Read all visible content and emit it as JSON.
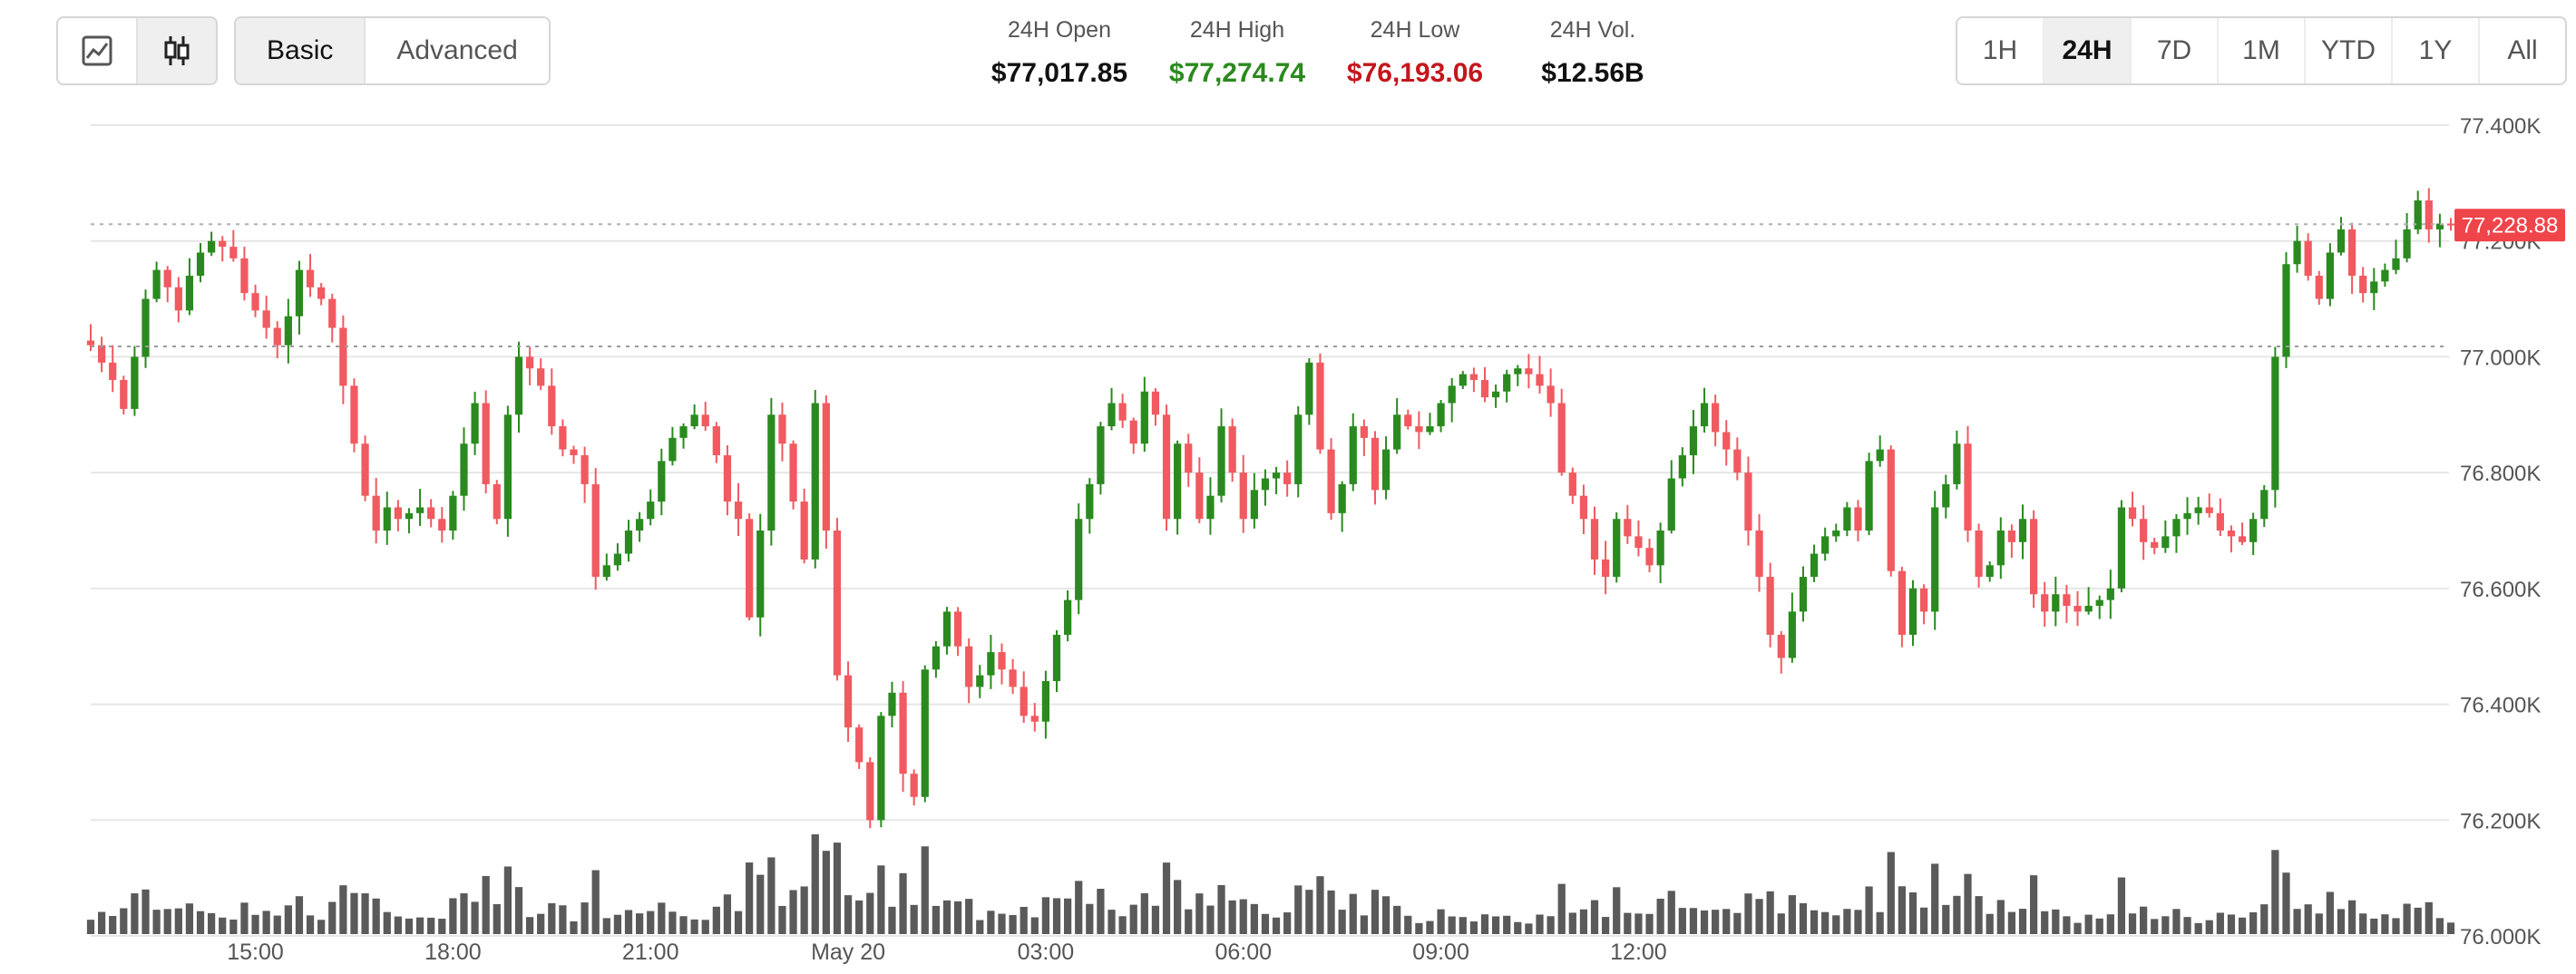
{
  "toolbar": {
    "chart_types": [
      {
        "icon": "line-chart-icon",
        "active": false
      },
      {
        "icon": "candlestick-icon",
        "active": true
      }
    ],
    "modes": [
      {
        "label": "Basic",
        "active": true
      },
      {
        "label": "Advanced",
        "active": false
      }
    ]
  },
  "stats": {
    "open": {
      "label": "24H Open",
      "value": "$77,017.85"
    },
    "high": {
      "label": "24H High",
      "value": "$77,274.74"
    },
    "low": {
      "label": "24H Low",
      "value": "$76,193.06"
    },
    "vol": {
      "label": "24H Vol.",
      "value": "$12.56B"
    }
  },
  "ranges": [
    {
      "label": "1H",
      "active": false
    },
    {
      "label": "24H",
      "active": true
    },
    {
      "label": "7D",
      "active": false
    },
    {
      "label": "1M",
      "active": false
    },
    {
      "label": "YTD",
      "active": false
    },
    {
      "label": "1Y",
      "active": false
    },
    {
      "label": "All",
      "active": false
    }
  ],
  "colors": {
    "up": "#2a8a1f",
    "down": "#f05a60",
    "volume": "#5a5a5a",
    "grid": "#e6e6e6",
    "price_tag": "#f0444b"
  },
  "chart_data": {
    "type": "candlestick",
    "interval_minutes": 10,
    "start_time": "12:30",
    "x_tick_labels": [
      {
        "label": "15:00",
        "time": "15:00"
      },
      {
        "label": "18:00",
        "time": "18:00"
      },
      {
        "label": "21:00",
        "time": "21:00"
      },
      {
        "label": "May 20",
        "time": "May 20 00:00"
      },
      {
        "label": "03:00",
        "time": "May 20 03:00"
      },
      {
        "label": "06:00",
        "time": "May 20 06:00"
      },
      {
        "label": "09:00",
        "time": "May 20 09:00"
      },
      {
        "label": "12:00",
        "time": "May 20 12:00"
      }
    ],
    "y_tick_labels": [
      "76.000K",
      "76.200K",
      "76.400K",
      "76.600K",
      "76.800K",
      "77.000K",
      "77.200K",
      "77.400K"
    ],
    "ylim": [
      76000,
      77400
    ],
    "reference_lines": {
      "open": 77017.85,
      "last": 77228.88
    },
    "last_price_label": "77,228.88",
    "closes": [
      77020,
      76990,
      76960,
      76910,
      77000,
      77100,
      77150,
      77120,
      77080,
      77140,
      77180,
      77200,
      77190,
      77170,
      77110,
      77080,
      77050,
      77020,
      77070,
      77150,
      77120,
      77100,
      77050,
      76950,
      76850,
      76760,
      76700,
      76740,
      76720,
      76730,
      76740,
      76720,
      76700,
      76760,
      76850,
      76920,
      76780,
      76720,
      76900,
      77000,
      76980,
      76950,
      76880,
      76840,
      76830,
      76780,
      76620,
      76640,
      76660,
      76700,
      76720,
      76750,
      76820,
      76860,
      76880,
      76900,
      76880,
      76830,
      76750,
      76720,
      76550,
      76700,
      76900,
      76850,
      76750,
      76650,
      76920,
      76700,
      76450,
      76360,
      76300,
      76200,
      76380,
      76420,
      76280,
      76240,
      76460,
      76500,
      76560,
      76500,
      76430,
      76450,
      76490,
      76460,
      76430,
      76380,
      76370,
      76440,
      76520,
      76580,
      76720,
      76780,
      76880,
      76920,
      76890,
      76850,
      76940,
      76900,
      76720,
      76850,
      76800,
      76720,
      76760,
      76880,
      76800,
      76720,
      76770,
      76790,
      76800,
      76780,
      76900,
      76990,
      76840,
      76730,
      76780,
      76880,
      76860,
      76770,
      76840,
      76900,
      76880,
      76870,
      76880,
      76920,
      76950,
      76970,
      76960,
      76930,
      76940,
      76970,
      76980,
      76970,
      76950,
      76920,
      76800,
      76760,
      76720,
      76650,
      76620,
      76720,
      76690,
      76670,
      76640,
      76700,
      76790,
      76830,
      76880,
      76920,
      76870,
      76840,
      76800,
      76700,
      76620,
      76520,
      76480,
      76560,
      76620,
      76660,
      76690,
      76700,
      76740,
      76700,
      76820,
      76840,
      76630,
      76520,
      76600,
      76560,
      76740,
      76780,
      76850,
      76700,
      76620,
      76640,
      76700,
      76680,
      76720,
      76590,
      76560,
      76590,
      76570,
      76560,
      76570,
      76580,
      76600,
      76740,
      76720,
      76680,
      76670,
      76690,
      76720,
      76730,
      76740,
      76730,
      76700,
      76690,
      76680,
      76720,
      76770,
      77000,
      77160,
      77200,
      77140,
      77100,
      77180,
      77220,
      77140,
      77110,
      77130,
      77150,
      77170,
      77220,
      77270,
      77220,
      77230,
      77228
    ]
  }
}
